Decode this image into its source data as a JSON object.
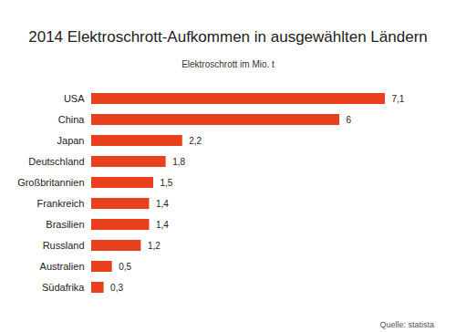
{
  "chart_data": {
    "type": "bar",
    "orientation": "horizontal",
    "title": "2014 Elektroschrott-Aufkommen in ausgewählten Ländern",
    "xlabel": "Elektroschrott im Mio. t",
    "source": "Quelle: statista",
    "categories": [
      "USA",
      "China",
      "Japan",
      "Deutschland",
      "Großbritannien",
      "Frankreich",
      "Brasilien",
      "Russland",
      "Australien",
      "Südafrika"
    ],
    "values": [
      7.1,
      6,
      2.2,
      1.8,
      1.5,
      1.4,
      1.4,
      1.2,
      0.5,
      0.3
    ],
    "value_labels": [
      "7,1",
      "6",
      "2,2",
      "1,8",
      "1,5",
      "1,4",
      "1,4",
      "1,2",
      "0,5",
      "0,3"
    ],
    "data_labels": true,
    "color": "#e8401c",
    "xlim": [
      0,
      7.1
    ],
    "tick_labels": "y",
    "grid": false
  }
}
